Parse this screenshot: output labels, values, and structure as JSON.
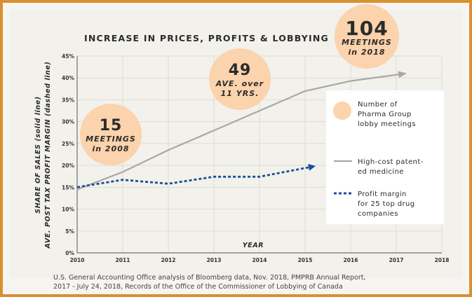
{
  "chart_data": {
    "type": "line",
    "title": "INCREASE IN PRICES, PROFITS & LOBBYING",
    "xlabel": "YEAR",
    "ylabel_line1": "SHARE OF SALES (solid line)",
    "ylabel_line2": "AVE. POST TAX PROFIT MARGIN (dashed line)",
    "xlim": [
      2010,
      2018
    ],
    "ylim": [
      0,
      45
    ],
    "x_ticks": [
      "2010",
      "2011",
      "2012",
      "2013",
      "2014",
      "2015",
      "2016",
      "2017",
      "2018"
    ],
    "y_ticks": [
      "0%",
      "5%",
      "10%",
      "15%",
      "20%",
      "25%",
      "30%",
      "35%",
      "40%",
      "45%"
    ],
    "grid": true,
    "legend_position": "right",
    "series": [
      {
        "name": "High-cost patent-ed medicine",
        "style": "solid",
        "color": "#a8a8a8",
        "x": [
          2010,
          2011,
          2012,
          2013,
          2014,
          2015,
          2016,
          2017.2
        ],
        "y": [
          14.5,
          18.5,
          23.5,
          28,
          32.5,
          37,
          39.3,
          41
        ]
      },
      {
        "name": "Profit margin for 25 top drug companies",
        "style": "dashed",
        "color": "#1c4e96",
        "x": [
          2010,
          2011,
          2012,
          2013,
          2014,
          2015.2
        ],
        "y": [
          15,
          16.7,
          15.8,
          17.4,
          17.4,
          19.8
        ]
      }
    ],
    "annotations": [
      {
        "number": "15",
        "line1": "MEETINGS",
        "line2": "in 2008"
      },
      {
        "number": "49",
        "line1": "AVE. over",
        "line2": "11 YRS."
      },
      {
        "number": "104",
        "line1": "MEETINGS",
        "line2": "in 2018"
      }
    ],
    "legend": [
      {
        "kind": "bubble",
        "lines": [
          "Number of",
          "Pharma Group",
          "lobby meetings"
        ]
      },
      {
        "kind": "solid",
        "lines": [
          "High-cost patent-",
          "ed medicine"
        ]
      },
      {
        "kind": "dashed",
        "lines": [
          "Profit margin",
          "for 25 top drug",
          "companies"
        ]
      }
    ],
    "colors": {
      "bubble": "#fbd3ac",
      "solid_line": "#a8a8a8",
      "dashed_line": "#1c4e96",
      "frame": "#d9902f"
    }
  },
  "source": {
    "line1": "U.S. General Accounting Office analysis of Bloomberg data, Nov. 2018, PMPRB Annual Report,",
    "line2": "2017 - July 24, 2018, Records of the Office of the Commissioner of Lobbying of Canada"
  }
}
